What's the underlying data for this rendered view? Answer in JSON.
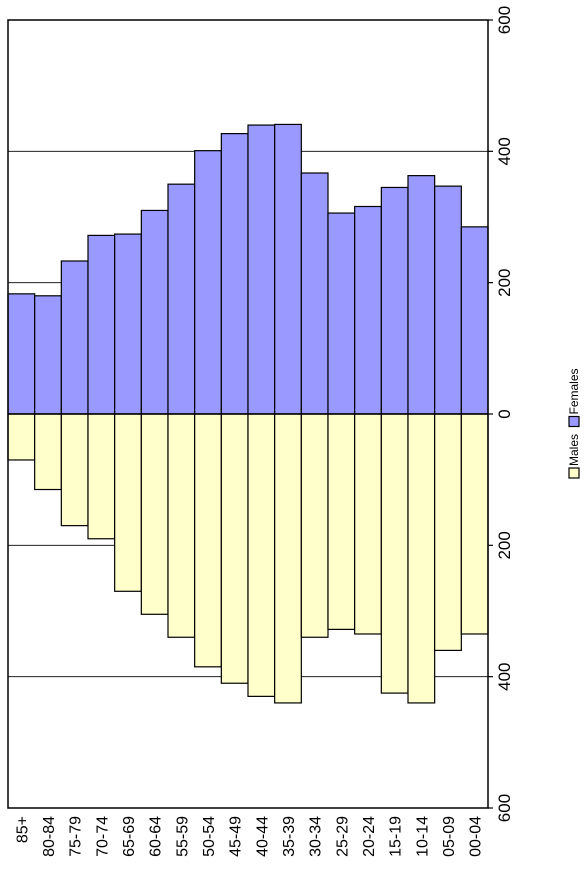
{
  "chart_data": {
    "type": "bar",
    "subtype": "population-pyramid",
    "orientation": "rotated-90",
    "categories": [
      "85+",
      "80-84",
      "75-79",
      "70-74",
      "65-69",
      "60-64",
      "55-59",
      "50-54",
      "45-49",
      "40-44",
      "35-39",
      "30-34",
      "25-29",
      "20-24",
      "15-19",
      "10-14",
      "05-09",
      "00-04"
    ],
    "series": [
      {
        "name": "Males",
        "color": "#ffffcc",
        "values": [
          70,
          115,
          170,
          190,
          270,
          305,
          340,
          385,
          410,
          430,
          440,
          340,
          328,
          335,
          425,
          440,
          360,
          335
        ]
      },
      {
        "name": "Females",
        "color": "#9999ff",
        "values": [
          183,
          180,
          233,
          272,
          274,
          310,
          350,
          401,
          427,
          440,
          441,
          367,
          306,
          316,
          345,
          363,
          347,
          285
        ]
      }
    ],
    "axis": {
      "range_males": [
        0,
        600
      ],
      "range_females": [
        0,
        600
      ],
      "ticks": [
        600,
        400,
        200,
        0,
        200,
        400,
        600
      ]
    },
    "grid": true,
    "legend": {
      "placement": "right",
      "entries": [
        "Males",
        "Females"
      ]
    }
  }
}
